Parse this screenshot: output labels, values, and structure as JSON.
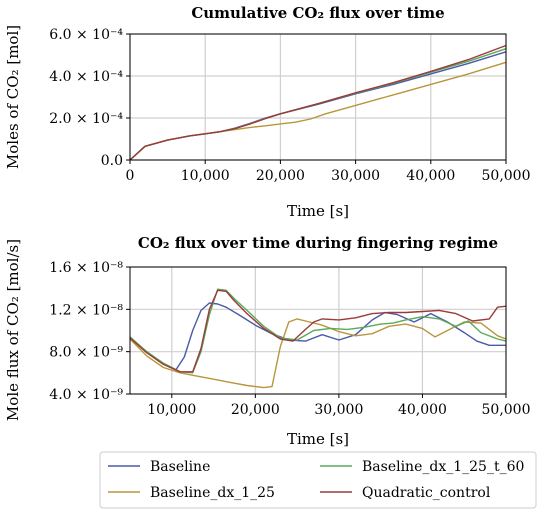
{
  "chart_data": [
    {
      "type": "line",
      "title": "Cumulative CO₂ flux over time",
      "xlabel": "Time [s]",
      "ylabel": "Moles of CO₂ [mol]",
      "xlim": [
        0,
        50000
      ],
      "ylim": [
        0,
        0.0006
      ],
      "grid": true,
      "xticks": [
        0,
        10000,
        20000,
        30000,
        40000,
        50000
      ],
      "xtick_labels": [
        "0",
        "10,000",
        "20,000",
        "30,000",
        "40,000",
        "50,000"
      ],
      "yticks": [
        0,
        0.0002,
        0.0004,
        0.0006
      ],
      "ytick_labels": [
        "0.0",
        "2.0 × 10⁻⁴",
        "4.0 × 10⁻⁴",
        "6.0 × 10⁻⁴"
      ],
      "series": [
        {
          "name": "Baseline",
          "color": "#4a5aa8",
          "x": [
            0,
            2000,
            5000,
            8000,
            10000,
            12000,
            14000,
            16000,
            18000,
            20000,
            25000,
            30000,
            35000,
            40000,
            45000,
            50000
          ],
          "y": [
            0,
            6.5e-05,
            9.5e-05,
            0.000115,
            0.000125,
            0.000135,
            0.000152,
            0.000175,
            0.0002,
            0.00022,
            0.000265,
            0.000315,
            0.00036,
            0.00041,
            0.00046,
            0.000515
          ]
        },
        {
          "name": "Baseline_dx_1_25",
          "color": "#b8963c",
          "x": [
            0,
            2000,
            5000,
            8000,
            10000,
            12000,
            14000,
            16000,
            18000,
            20000,
            22000,
            24000,
            26000,
            30000,
            35000,
            40000,
            45000,
            50000
          ],
          "y": [
            0,
            6.5e-05,
            9.5e-05,
            0.000115,
            0.000125,
            0.000135,
            0.000145,
            0.000155,
            0.000163,
            0.000172,
            0.00018,
            0.000195,
            0.00022,
            0.00026,
            0.00031,
            0.00036,
            0.00041,
            0.000465
          ]
        },
        {
          "name": "Baseline_dx_1_25_t_60",
          "color": "#5aaa5a",
          "x": [
            0,
            2000,
            5000,
            8000,
            10000,
            12000,
            14000,
            16000,
            18000,
            20000,
            25000,
            30000,
            35000,
            40000,
            45000,
            50000
          ],
          "y": [
            0,
            6.5e-05,
            9.5e-05,
            0.000115,
            0.000125,
            0.000135,
            0.00015,
            0.000173,
            0.000198,
            0.00022,
            0.000268,
            0.000318,
            0.000365,
            0.000418,
            0.00047,
            0.00053
          ]
        },
        {
          "name": "Quadratic_control",
          "color": "#9a3a3a",
          "x": [
            0,
            2000,
            5000,
            8000,
            10000,
            12000,
            14000,
            16000,
            18000,
            20000,
            25000,
            30000,
            35000,
            40000,
            45000,
            50000
          ],
          "y": [
            0,
            6.5e-05,
            9.5e-05,
            0.000115,
            0.000125,
            0.000135,
            0.00015,
            0.000172,
            0.000197,
            0.00022,
            0.000268,
            0.00032,
            0.000368,
            0.000422,
            0.000478,
            0.000545
          ]
        }
      ]
    },
    {
      "type": "line",
      "title": "CO₂ flux over time during fingering regime",
      "xlabel": "Time [s]",
      "ylabel": "Mole flux of CO₂ [mol/s]",
      "xlim": [
        5000,
        50000
      ],
      "ylim": [
        4e-09,
        1.6e-08
      ],
      "grid": true,
      "xticks": [
        10000,
        20000,
        30000,
        40000,
        50000
      ],
      "xtick_labels": [
        "10,000",
        "20,000",
        "30,000",
        "40,000",
        "50,000"
      ],
      "yticks": [
        4e-09,
        8e-09,
        1.2e-08,
        1.6e-08
      ],
      "ytick_labels": [
        "4.0 × 10⁻⁹",
        "8.0 × 10⁻⁹",
        "1.2 × 10⁻⁸",
        "1.6 × 10⁻⁸"
      ],
      "series": [
        {
          "name": "Baseline",
          "color": "#4a5aa8",
          "x": [
            5000,
            7000,
            9000,
            10500,
            11500,
            12500,
            13500,
            14500,
            15500,
            16500,
            18000,
            20000,
            22000,
            24000,
            26000,
            28000,
            30000,
            32000,
            34000,
            35500,
            37000,
            39000,
            41000,
            43000,
            45000,
            46500,
            48000,
            50000
          ],
          "y": [
            9.3e-09,
            8e-09,
            6.9e-09,
            6.3e-09,
            7.5e-09,
            1e-08,
            1.19e-08,
            1.26e-08,
            1.25e-08,
            1.22e-08,
            1.15e-08,
            1.05e-08,
            9.7e-09,
            9.1e-09,
            9e-09,
            9.6e-09,
            9.1e-09,
            9.6e-09,
            1.1e-08,
            1.17e-08,
            1.15e-08,
            1.08e-08,
            1.16e-08,
            1.08e-08,
            9.8e-09,
            9e-09,
            8.6e-09,
            8.6e-09
          ]
        },
        {
          "name": "Baseline_dx_1_25",
          "color": "#b8963c",
          "x": [
            5000,
            7000,
            9000,
            11000,
            13000,
            15000,
            17000,
            19000,
            21000,
            22000,
            23000,
            24000,
            25000,
            26000,
            28000,
            30000,
            32000,
            34000,
            36000,
            38000,
            40000,
            41500,
            43000,
            45000,
            47000,
            49000,
            50000
          ],
          "y": [
            9.2e-09,
            7.6e-09,
            6.5e-09,
            6e-09,
            5.7e-09,
            5.4e-09,
            5.1e-09,
            4.8e-09,
            4.6e-09,
            4.7e-09,
            8.5e-09,
            1.08e-08,
            1.11e-08,
            1.09e-08,
            1.05e-08,
            9.9e-09,
            9.5e-09,
            9.7e-09,
            1.04e-08,
            1.06e-08,
            1.02e-08,
            9.4e-09,
            1e-08,
            1.08e-08,
            1.07e-08,
            9.5e-09,
            9.2e-09
          ]
        },
        {
          "name": "Baseline_dx_1_25_t_60",
          "color": "#5aaa5a",
          "x": [
            5000,
            7000,
            9000,
            11000,
            12500,
            13500,
            14500,
            15500,
            16500,
            17500,
            19000,
            21000,
            23000,
            25000,
            27000,
            29000,
            31000,
            33000,
            35000,
            36500,
            38000,
            40000,
            42000,
            44000,
            45500,
            47000,
            49000,
            50000
          ],
          "y": [
            9.4e-09,
            8e-09,
            6.9e-09,
            6.1e-09,
            6e-09,
            8e-09,
            1.15e-08,
            1.39e-08,
            1.38e-08,
            1.3e-08,
            1.19e-08,
            1.04e-08,
            9.3e-09,
            9.1e-09,
            1e-08,
            1.02e-08,
            1.01e-08,
            1.03e-08,
            1.06e-08,
            1.07e-08,
            1.1e-08,
            1.13e-08,
            1.11e-08,
            1.04e-08,
            1.09e-08,
            9.8e-09,
            9.2e-09,
            9e-09
          ]
        },
        {
          "name": "Quadratic_control",
          "color": "#9a3a3a",
          "x": [
            5000,
            7000,
            9000,
            11000,
            12500,
            13500,
            14500,
            15500,
            16500,
            17500,
            19000,
            21000,
            23000,
            24500,
            26000,
            27000,
            28000,
            30000,
            32000,
            34000,
            36000,
            38000,
            40000,
            42000,
            44000,
            46000,
            48000,
            49000,
            50000
          ],
          "y": [
            9.3e-09,
            7.9e-09,
            6.8e-09,
            6.1e-09,
            6.1e-09,
            8.3e-09,
            1.2e-08,
            1.38e-08,
            1.37e-08,
            1.28e-08,
            1.16e-08,
            1.02e-08,
            9.2e-09,
            9e-09,
            1.01e-08,
            1.08e-08,
            1.11e-08,
            1.1e-08,
            1.12e-08,
            1.16e-08,
            1.17e-08,
            1.17e-08,
            1.18e-08,
            1.19e-08,
            1.16e-08,
            1.09e-08,
            1.11e-08,
            1.22e-08,
            1.23e-08
          ]
        }
      ]
    }
  ],
  "legend": {
    "placement": "bottom",
    "entries": [
      {
        "label": "Baseline",
        "color": "#4a5aa8"
      },
      {
        "label": "Baseline_dx_1_25_t_60",
        "color": "#5aaa5a"
      },
      {
        "label": "Baseline_dx_1_25",
        "color": "#b8963c"
      },
      {
        "label": "Quadratic_control",
        "color": "#9a3a3a"
      }
    ]
  }
}
